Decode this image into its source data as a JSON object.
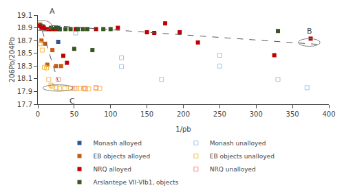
{
  "chart_data": {
    "type": "scatter",
    "xlabel": "1/pb",
    "ylabel": "206Pb/204Pb",
    "xlim": [
      0,
      400
    ],
    "ylim": [
      17.7,
      19.1
    ],
    "xticks": [
      0,
      50,
      100,
      150,
      200,
      250,
      300,
      350,
      400
    ],
    "yticks": [
      17.7,
      17.9,
      18.1,
      18.3,
      18.5,
      18.7,
      18.9,
      19.1
    ],
    "grid": false,
    "legend": "bottom",
    "series": [
      {
        "name": "Monash alloyed",
        "color": "#2F5496",
        "marker": "square",
        "x": [
          3,
          5,
          7,
          8,
          28,
          28
        ],
        "values": [
          18.95,
          18.93,
          18.92,
          18.9,
          18.9,
          18.68
        ]
      },
      {
        "name": "Monash unalloyed",
        "color": "#9DC3E6",
        "marker": "square-open",
        "x": [
          52,
          115,
          115,
          170,
          250,
          250,
          330,
          370
        ],
        "values": [
          18.82,
          18.43,
          18.29,
          18.09,
          18.47,
          18.3,
          18.09,
          17.96
        ]
      },
      {
        "name": "EB objects alloyed",
        "color": "#C55A11",
        "marker": "square",
        "x": [
          5,
          10,
          13,
          20,
          25,
          32
        ],
        "values": [
          18.7,
          18.65,
          18.32,
          18.55,
          18.3,
          18.3
        ]
      },
      {
        "name": "EB objects unalloyed",
        "color": "#F4B942",
        "marker": "square-open",
        "x": [
          3,
          3,
          6,
          9,
          12,
          15,
          18,
          20,
          25,
          30,
          37,
          45,
          53,
          58,
          63,
          65,
          70,
          80,
          85
        ],
        "values": [
          18.95,
          18.65,
          18.55,
          18.28,
          18.27,
          18.09,
          18.0,
          17.98,
          17.96,
          17.95,
          17.95,
          17.95,
          17.95,
          17.95,
          17.95,
          17.94,
          17.94,
          17.95,
          17.95
        ]
      },
      {
        "name": "NRQ alloyed",
        "color": "#C00000",
        "marker": "square",
        "x": [
          3,
          5,
          8,
          10,
          15,
          20,
          25,
          30,
          35,
          40,
          52,
          80,
          110,
          150,
          160,
          175,
          195,
          220,
          325,
          375
        ],
        "values": [
          18.93,
          18.9,
          18.9,
          18.88,
          18.88,
          18.88,
          18.88,
          18.88,
          18.46,
          18.35,
          18.88,
          18.88,
          18.9,
          18.83,
          18.82,
          18.97,
          18.83,
          18.67,
          18.47,
          18.73
        ]
      },
      {
        "name": "NRQ unalloyed",
        "color": "#FF7F7F",
        "marker": "square-open",
        "x": [
          28,
          50,
          65,
          80
        ],
        "values": [
          18.09,
          17.95,
          17.95,
          17.96
        ]
      },
      {
        "name": "Arslantepe VII-VIb1, objects",
        "color": "#375623",
        "marker": "square",
        "x": [
          18,
          25,
          30,
          38,
          45,
          50,
          55,
          62,
          68,
          75,
          90,
          100,
          330
        ],
        "values": [
          18.9,
          18.9,
          18.88,
          18.88,
          18.88,
          18.57,
          18.88,
          18.88,
          18.88,
          18.55,
          18.88,
          18.88,
          18.85
        ]
      },
      {
        "type": "line",
        "line_style": "dashed",
        "color": "#555555",
        "x": [
          2,
          385
        ],
        "values": [
          18.95,
          18.64
        ]
      },
      {
        "type": "line",
        "line_style": "dashed",
        "color": "#555555",
        "x": [
          6,
          28
        ],
        "values": [
          18.855,
          18.055
        ]
      }
    ],
    "ellipses": [
      {
        "center": [
          6,
          18.935
        ],
        "width": 26,
        "height": 0.16,
        "color": "gray"
      },
      {
        "center": [
          373,
          18.67
        ],
        "width": 30,
        "height": 0.12,
        "color": "gray"
      },
      {
        "center": [
          28,
          17.955
        ],
        "width": 42,
        "height": 0.1,
        "color": "gray"
      }
    ],
    "annotations": [
      {
        "x": 14,
        "y": 19.07,
        "text": "A",
        "position": "above"
      },
      {
        "x": 368,
        "y": 18.76,
        "text": "B",
        "position": "above"
      },
      {
        "x": 42,
        "y": 17.84,
        "text": "C",
        "position": "below"
      }
    ]
  }
}
